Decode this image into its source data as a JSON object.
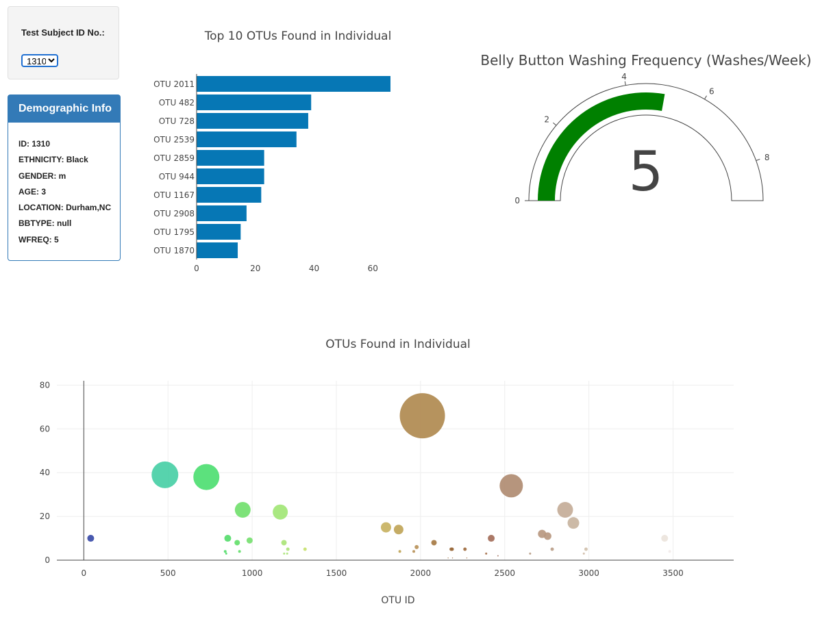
{
  "selector": {
    "label": "Test Subject ID No.:",
    "selected": "1310"
  },
  "demographics": {
    "heading": "Demographic Info",
    "lines": [
      "ID: 1310",
      "ETHNICITY: Black",
      "GENDER: m",
      "AGE: 3",
      "LOCATION: Durham,NC",
      "BBTYPE: null",
      "WFREQ: 5"
    ]
  },
  "colors": {
    "bar": "#0677b5",
    "gauge": "#008000",
    "panel_heading": "#337ab7"
  },
  "chart_data": [
    {
      "type": "bar",
      "orientation": "horizontal",
      "title": "Top 10 OTUs Found in Individual",
      "categories": [
        "OTU 2011",
        "OTU 482",
        "OTU 728",
        "OTU 2539",
        "OTU 2859",
        "OTU 944",
        "OTU 1167",
        "OTU 2908",
        "OTU 1795",
        "OTU 1870"
      ],
      "values": [
        66,
        39,
        38,
        34,
        23,
        23,
        22,
        17,
        15,
        14
      ],
      "xlim": [
        0,
        66
      ],
      "xticks": [
        0,
        20,
        40,
        60
      ]
    },
    {
      "type": "gauge",
      "title": "Belly Button Washing Frequency (Washes/Week)",
      "value": 5,
      "range": [
        0,
        9
      ],
      "ticks": [
        0,
        2,
        4,
        6,
        8
      ]
    },
    {
      "type": "scatter",
      "title": "OTUs Found in Individual",
      "xlabel": "OTU ID",
      "xlim": [
        -160,
        3860
      ],
      "ylim": [
        0,
        82
      ],
      "xticks": [
        0,
        500,
        1000,
        1500,
        2000,
        2500,
        3000,
        3500
      ],
      "yticks": [
        0,
        20,
        40,
        60,
        80
      ],
      "grid": true,
      "points": [
        {
          "x": 41,
          "y": 10,
          "color": "#3a4ba8"
        },
        {
          "x": 482,
          "y": 39,
          "color": "#49cfa6"
        },
        {
          "x": 728,
          "y": 38,
          "color": "#4ede72"
        },
        {
          "x": 840,
          "y": 4,
          "color": "#56dc6c"
        },
        {
          "x": 846,
          "y": 3,
          "color": "#56dc6c"
        },
        {
          "x": 855,
          "y": 10,
          "color": "#56dc6c"
        },
        {
          "x": 911,
          "y": 8,
          "color": "#64de6b"
        },
        {
          "x": 925,
          "y": 4,
          "color": "#64de6b"
        },
        {
          "x": 944,
          "y": 23,
          "color": "#72e06e"
        },
        {
          "x": 985,
          "y": 9,
          "color": "#76e070"
        },
        {
          "x": 1167,
          "y": 22,
          "color": "#a2e676"
        },
        {
          "x": 1189,
          "y": 8,
          "color": "#aae478"
        },
        {
          "x": 1190,
          "y": 3,
          "color": "#aae478"
        },
        {
          "x": 1208,
          "y": 3,
          "color": "#aae478"
        },
        {
          "x": 1212,
          "y": 5,
          "color": "#aee47a"
        },
        {
          "x": 1314,
          "y": 5,
          "color": "#c8e270"
        },
        {
          "x": 1795,
          "y": 15,
          "color": "#c8b262"
        },
        {
          "x": 1870,
          "y": 14,
          "color": "#c0a558"
        },
        {
          "x": 1877,
          "y": 4,
          "color": "#c0a558"
        },
        {
          "x": 1960,
          "y": 4,
          "color": "#b8925a"
        },
        {
          "x": 1977,
          "y": 6,
          "color": "#b8925a"
        },
        {
          "x": 2011,
          "y": 66,
          "color": "#b08a50"
        },
        {
          "x": 2080,
          "y": 8,
          "color": "#a67a44"
        },
        {
          "x": 2164,
          "y": 1,
          "color": "#a0703e"
        },
        {
          "x": 2182,
          "y": 5,
          "color": "#9a6a3c"
        },
        {
          "x": 2188,
          "y": 5,
          "color": "#9a6a3c"
        },
        {
          "x": 2190,
          "y": 1,
          "color": "#9a6a3c"
        },
        {
          "x": 2264,
          "y": 5,
          "color": "#a06c40"
        },
        {
          "x": 2275,
          "y": 1,
          "color": "#a06c40"
        },
        {
          "x": 2390,
          "y": 3,
          "color": "#a46e48"
        },
        {
          "x": 2420,
          "y": 10,
          "color": "#a46e5a"
        },
        {
          "x": 2460,
          "y": 2,
          "color": "#a87a68"
        },
        {
          "x": 2539,
          "y": 34,
          "color": "#b08c72"
        },
        {
          "x": 2651,
          "y": 3,
          "color": "#b69a82"
        },
        {
          "x": 2722,
          "y": 12,
          "color": "#b89880"
        },
        {
          "x": 2755,
          "y": 11,
          "color": "#b89880"
        },
        {
          "x": 2782,
          "y": 5,
          "color": "#bba08a"
        },
        {
          "x": 2859,
          "y": 23,
          "color": "#c4ac98"
        },
        {
          "x": 2908,
          "y": 17,
          "color": "#c8b4a0"
        },
        {
          "x": 2970,
          "y": 3,
          "color": "#d0bca8"
        },
        {
          "x": 2983,
          "y": 5,
          "color": "#d0c0ac"
        },
        {
          "x": 3450,
          "y": 10,
          "color": "#ece4dc"
        },
        {
          "x": 3480,
          "y": 4,
          "color": "#f2ecea"
        }
      ]
    }
  ]
}
